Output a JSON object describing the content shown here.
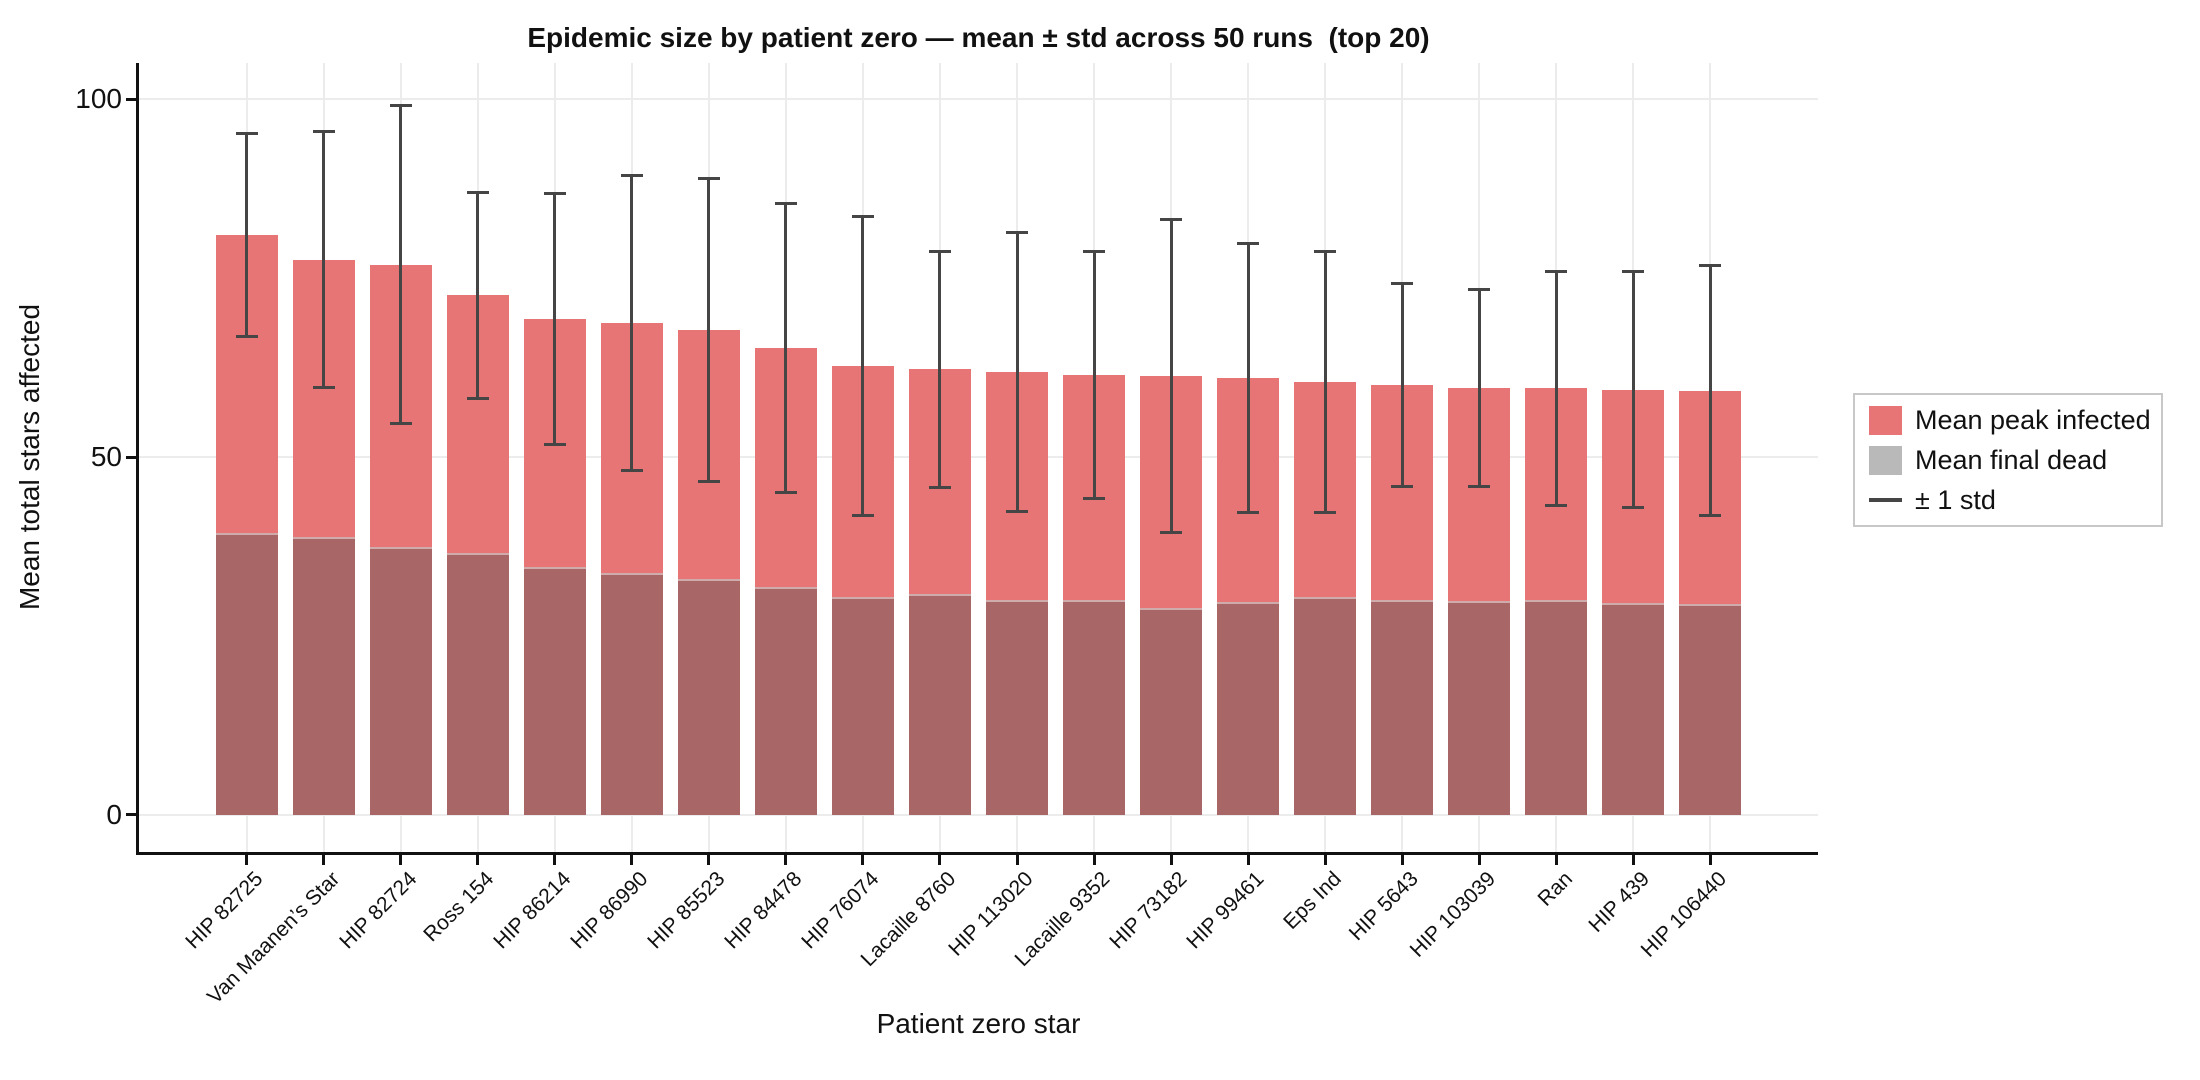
{
  "figure": {
    "title": "Epidemic size by patient zero — mean ± std across 50 runs  (top 20)",
    "xlabel": "Patient zero star",
    "ylabel": "Mean total stars affected"
  },
  "legend": {
    "items": [
      {
        "label": "Mean peak infected",
        "swatch": "rect",
        "color": "#e87575"
      },
      {
        "label": "Mean final dead",
        "swatch": "rect",
        "color": "#b9b9b9"
      },
      {
        "label": "± 1 std",
        "swatch": "line",
        "color": "#454545"
      }
    ]
  },
  "chart_data": {
    "type": "bar",
    "title": "Epidemic size by patient zero — mean ± std across 50 runs  (top 20)",
    "xlabel": "Patient zero star",
    "ylabel": "Mean total stars affected",
    "categories": [
      "HIP 82725",
      "Van Maanen’s Star",
      "HIP 82724",
      "Ross 154",
      "HIP 86214",
      "HIP 86990",
      "HIP 85523",
      "HIP 84478",
      "HIP 76074",
      "Lacaille 8760",
      "HIP 113020",
      "Lacaille 9352",
      "HIP 73182",
      "HIP 99461",
      "Eps Ind",
      "HIP 5643",
      "HIP 103039",
      "Ran",
      "HIP 439",
      "HIP 106440"
    ],
    "series": [
      {
        "name": "Mean peak infected",
        "values": [
          81.1,
          77.6,
          76.9,
          72.6,
          69.3,
          68.8,
          67.8,
          65.2,
          62.8,
          62.3,
          61.9,
          61.5,
          61.3,
          61.1,
          60.5,
          60.1,
          59.7,
          59.6,
          59.4,
          59.3
        ]
      },
      {
        "name": "Mean final dead",
        "values": [
          39.4,
          38.9,
          37.4,
          36.6,
          34.7,
          33.8,
          32.9,
          31.9,
          30.5,
          30.8,
          30.0,
          30.0,
          28.9,
          29.7,
          30.4,
          30.0,
          29.9,
          30.0,
          29.6,
          29.4
        ]
      },
      {
        "name": "± 1 std",
        "values": [
          14.2,
          17.9,
          22.2,
          14.4,
          17.6,
          20.6,
          21.2,
          20.2,
          20.9,
          16.5,
          19.5,
          17.3,
          21.9,
          18.8,
          18.2,
          14.2,
          13.8,
          16.4,
          16.5,
          17.5
        ]
      }
    ],
    "yticks": [
      0,
      50,
      100
    ],
    "ylim": [
      -5.2,
      105.1
    ],
    "grid": true,
    "legend_position": "right",
    "colors": {
      "peak": "#e87575",
      "dead_overlap": "#a96667",
      "dead_legend": "#b9b9b9",
      "error": "#454545",
      "grid": "#ececec",
      "spine": "#111111",
      "background": "#ffffff"
    }
  }
}
